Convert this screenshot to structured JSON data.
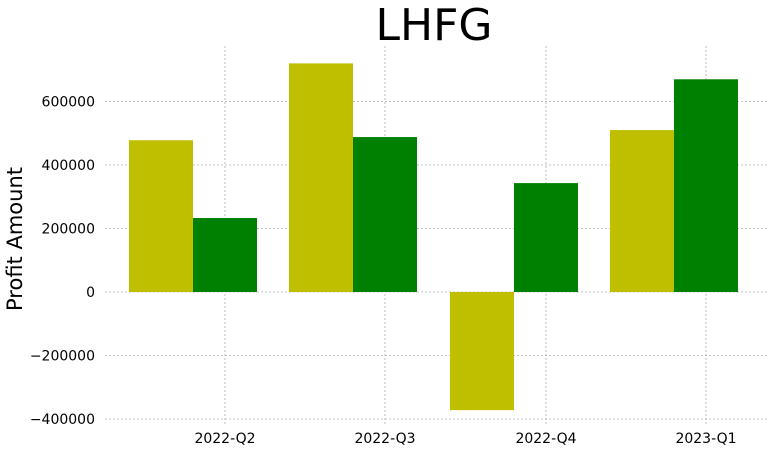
{
  "chart_data": {
    "type": "bar",
    "title": "LHFG",
    "xlabel": "",
    "ylabel": "Profit Amount",
    "categories": [
      "2022-Q2",
      "2022-Q3",
      "2022-Q4",
      "2023-Q1"
    ],
    "series": [
      {
        "color": "#bfbf00",
        "values": [
          478000,
          720000,
          -372000,
          510000
        ]
      },
      {
        "color": "#008000",
        "values": [
          233000,
          488000,
          343000,
          670000
        ]
      }
    ],
    "yticks": [
      -400000,
      -200000,
      0,
      200000,
      400000,
      600000
    ],
    "ytick_labels": [
      "−400000",
      "−200000",
      "0",
      "200000",
      "400000",
      "600000"
    ],
    "ylim": [
      -400000,
      720000
    ],
    "grid": true,
    "legend": "none"
  }
}
